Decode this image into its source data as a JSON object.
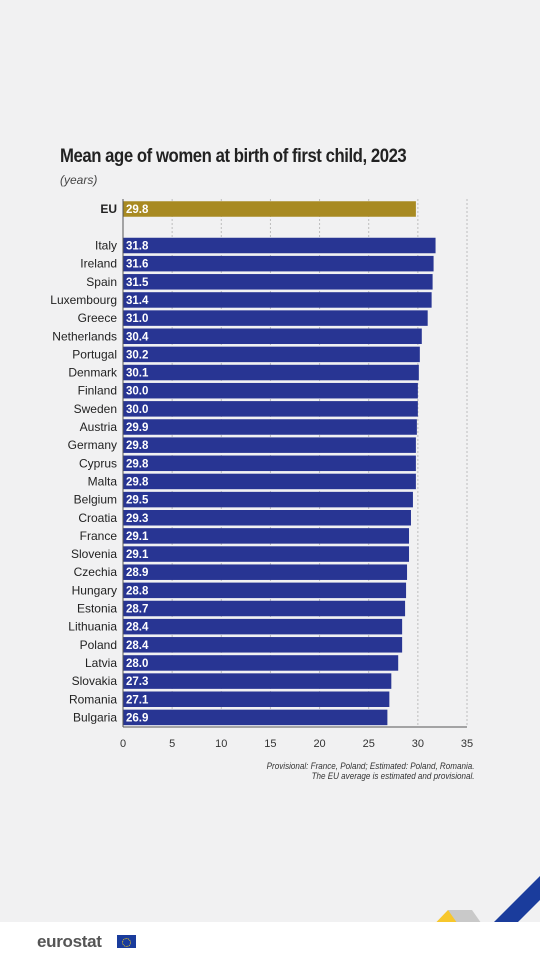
{
  "title": "Mean age of women at birth of first child, 2023",
  "subtitle": "(years)",
  "notes": [
    "Provisional: France, Poland; Estimated: Poland, Romania.",
    "The EU average is estimated and provisional."
  ],
  "logo_text": "eurostat",
  "colors": {
    "eu_bar": "#a88a22",
    "country_bar": "#283593",
    "grid": "#bdbdbd"
  },
  "chart_data": {
    "type": "bar",
    "orientation": "horizontal",
    "title": "Mean age of women at birth of first child, 2023",
    "subtitle": "(years)",
    "xlim": [
      0,
      35
    ],
    "xticks": [
      0,
      5,
      10,
      15,
      20,
      25,
      30,
      35
    ],
    "grid": true,
    "highlight": {
      "category": "EU",
      "value": 29.8,
      "label": "29.8"
    },
    "categories": [
      "Italy",
      "Ireland",
      "Spain",
      "Luxembourg",
      "Greece",
      "Netherlands",
      "Portugal",
      "Denmark",
      "Finland",
      "Sweden",
      "Austria",
      "Germany",
      "Cyprus",
      "Malta",
      "Belgium",
      "Croatia",
      "France",
      "Slovenia",
      "Czechia",
      "Hungary",
      "Estonia",
      "Lithuania",
      "Poland",
      "Latvia",
      "Slovakia",
      "Romania",
      "Bulgaria"
    ],
    "values": [
      31.8,
      31.6,
      31.5,
      31.4,
      31.0,
      30.4,
      30.2,
      30.1,
      30.0,
      30.0,
      29.9,
      29.8,
      29.8,
      29.8,
      29.5,
      29.3,
      29.1,
      29.1,
      28.9,
      28.8,
      28.7,
      28.4,
      28.4,
      28.0,
      27.3,
      27.1,
      26.9
    ],
    "value_labels": [
      "31.8",
      "31.6",
      "31.5",
      "31.4",
      "31.0",
      "30.4",
      "30.2",
      "30.1",
      "30.0",
      "30.0",
      "29.9",
      "29.8",
      "29.8",
      "29.8",
      "29.5",
      "29.3",
      "29.1",
      "29.1",
      "28.9",
      "28.8",
      "28.7",
      "28.4",
      "28.4",
      "28.0",
      "27.3",
      "27.1",
      "26.9"
    ]
  }
}
